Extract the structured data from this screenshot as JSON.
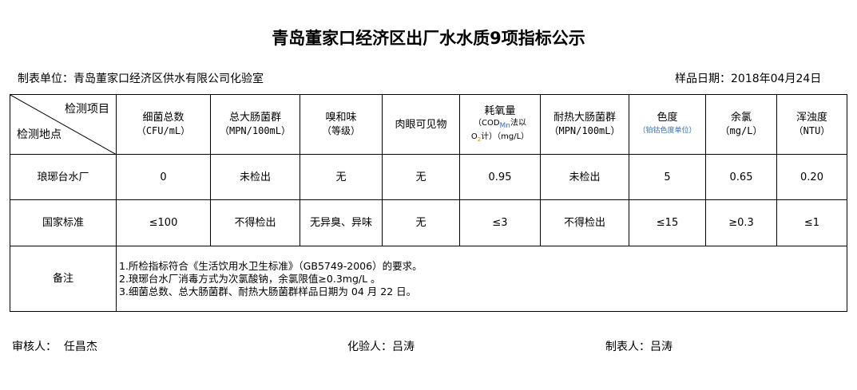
{
  "title": "青岛董家口经济区出厂水水质9项指标公示",
  "unit": "制表单位：青岛董家口经济区供水有限公司化验室",
  "sample_date": "样品日期：2018年04月24日",
  "header": {
    "corner_top": "检测项目",
    "corner_bottom": "检测地点",
    "cols": [
      {
        "name": "细菌总数",
        "unit": "（CFU/mL）"
      },
      {
        "name": "总大肠菌群",
        "unit": "（MPN/100mL）"
      },
      {
        "name": "嗅和味",
        "unit": "（等级）"
      },
      {
        "name": "肉眼可见物",
        "unit": ""
      },
      {
        "name": "耗氧量",
        "unit": "（COD",
        "unit_sub": "Mn",
        "unit2": "法以",
        "unit3": "O",
        "unit3_sub": "2",
        "unit4": "计）（mg/L）"
      },
      {
        "name": "耐热大肠菌群",
        "unit": "（MPN/100mL）"
      },
      {
        "name": "色度",
        "unit": "（铂钴色度单位）"
      },
      {
        "name": "余氯",
        "unit": "（mg/L）"
      },
      {
        "name": "浑浊度",
        "unit": "（NTU）"
      }
    ]
  },
  "rows": [
    {
      "site": "琅琊台水厂",
      "values": [
        "0",
        "未检出",
        "无",
        "无",
        "0.95",
        "未检出",
        "5",
        "0.65",
        "0.20"
      ]
    },
    {
      "site": "国家标准",
      "values": [
        "≤100",
        "不得检出",
        "无异臭、异味",
        "无",
        "≤3",
        "不得检出",
        "≤15",
        "≥0.3",
        "≤1"
      ]
    }
  ],
  "notes": {
    "label": "备注",
    "lines": [
      "1.所检指标符合《生活饮用水卫生标准》（GB5749-2006）的要求。",
      "2.琅琊台水厂消毒方式为次氯酸钠，余氯限值≥0.3mg/L 。",
      "3.细菌总数、总大肠菌群、耐热大肠菌群样品日期为 04 月 22 日。"
    ]
  },
  "footer": {
    "reviewer": "审核人：  任昌杰",
    "tester": "化验人：吕涛",
    "preparer": "制表人：吕涛"
  }
}
